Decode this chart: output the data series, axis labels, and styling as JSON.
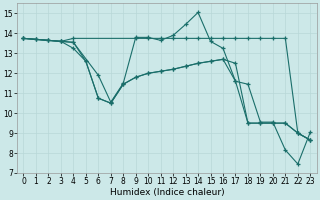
{
  "xlabel": "Humidex (Indice chaleur)",
  "xlim": [
    -0.5,
    23.5
  ],
  "ylim": [
    7,
    15.5
  ],
  "yticks": [
    7,
    8,
    9,
    10,
    11,
    12,
    13,
    14,
    15
  ],
  "xticks": [
    0,
    1,
    2,
    3,
    4,
    5,
    6,
    7,
    8,
    9,
    10,
    11,
    12,
    13,
    14,
    15,
    16,
    17,
    18,
    19,
    20,
    21,
    22,
    23
  ],
  "bg_color": "#cce8e8",
  "line_color": "#1a6e6a",
  "grid_color": "#b8d8d8",
  "series": [
    {
      "x": [
        0,
        1,
        2,
        3,
        4,
        9,
        10,
        11,
        12,
        13,
        14,
        15,
        16,
        17,
        18,
        19,
        20,
        21,
        22,
        23
      ],
      "y": [
        13.75,
        13.7,
        13.65,
        13.6,
        13.75,
        13.75,
        13.75,
        13.75,
        13.75,
        13.75,
        13.75,
        13.75,
        13.75,
        13.75,
        13.75,
        13.75,
        13.75,
        13.75,
        9.0,
        8.65
      ]
    },
    {
      "x": [
        0,
        1,
        2,
        3,
        4,
        5,
        6,
        7,
        8,
        9,
        10,
        11,
        12,
        13,
        14,
        15,
        16,
        17,
        18,
        19,
        20,
        21,
        22,
        23
      ],
      "y": [
        13.75,
        13.7,
        13.65,
        13.6,
        13.55,
        12.6,
        10.75,
        10.5,
        11.45,
        11.8,
        12.0,
        12.1,
        12.2,
        12.35,
        12.5,
        12.6,
        12.7,
        12.5,
        9.5,
        9.5,
        9.5,
        9.5,
        9.0,
        8.65
      ]
    },
    {
      "x": [
        0,
        3,
        4,
        5,
        6,
        7,
        8,
        9,
        10,
        11,
        12,
        13,
        14,
        15,
        16,
        17,
        18,
        19,
        20,
        21,
        22,
        23
      ],
      "y": [
        13.75,
        13.6,
        13.25,
        12.6,
        10.75,
        10.5,
        11.45,
        11.8,
        12.0,
        12.1,
        12.2,
        12.35,
        12.5,
        12.6,
        12.7,
        11.6,
        9.5,
        9.5,
        9.5,
        9.5,
        9.0,
        8.65
      ]
    },
    {
      "x": [
        0,
        1,
        2,
        3,
        4,
        6,
        7,
        8,
        9,
        10,
        11,
        12,
        13,
        14,
        15,
        16,
        17,
        18,
        19,
        20,
        21,
        22,
        23
      ],
      "y": [
        13.75,
        13.7,
        13.65,
        13.6,
        13.55,
        11.9,
        10.55,
        11.5,
        13.8,
        13.8,
        13.65,
        13.9,
        14.45,
        15.05,
        13.6,
        13.25,
        11.6,
        11.45,
        9.55,
        9.55,
        8.15,
        7.45,
        9.05
      ]
    }
  ]
}
